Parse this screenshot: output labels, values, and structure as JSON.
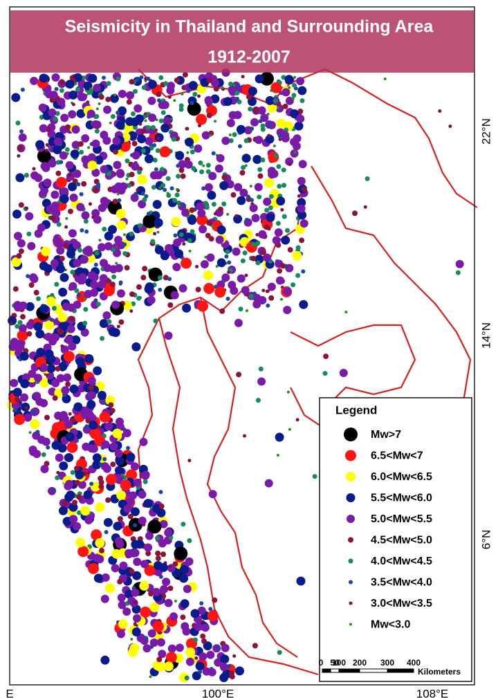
{
  "title": {
    "line1": "Seismicity in Thailand and Surrounding Area",
    "line2": "1912-2007"
  },
  "latitude_labels": [
    "22°N",
    "14°N",
    "6°N"
  ],
  "longitude_labels": [
    "E",
    "100°E",
    "108°E"
  ],
  "legend": {
    "title": "Legend",
    "items": [
      {
        "label": "Mw>7",
        "color": "#000000"
      },
      {
        "label": "6.5<Mw<7",
        "color": "#ff1414"
      },
      {
        "label": "6.0<Mw<6.5",
        "color": "#ffff00"
      },
      {
        "label": "5.5<Mw<6.0",
        "color": "#0a1c8c"
      },
      {
        "label": "5.0<Mw<5.5",
        "color": "#7a1aa8"
      },
      {
        "label": "4.5<Mw<5.0",
        "color": "#8c1438"
      },
      {
        "label": "4.0<Mw<4.5",
        "color": "#168a5c"
      },
      {
        "label": "3.5<Mw<4.0",
        "color": "#1a4a9c"
      },
      {
        "label": "3.0<Mw<3.5",
        "color": "#801040"
      },
      {
        "label": "Mw<3.0",
        "color": "#2a8c1e"
      }
    ]
  },
  "scale_bar": {
    "ticks": [
      "0",
      "50",
      "100",
      "200",
      "300",
      "400"
    ],
    "unit": "Kilometers"
  }
}
